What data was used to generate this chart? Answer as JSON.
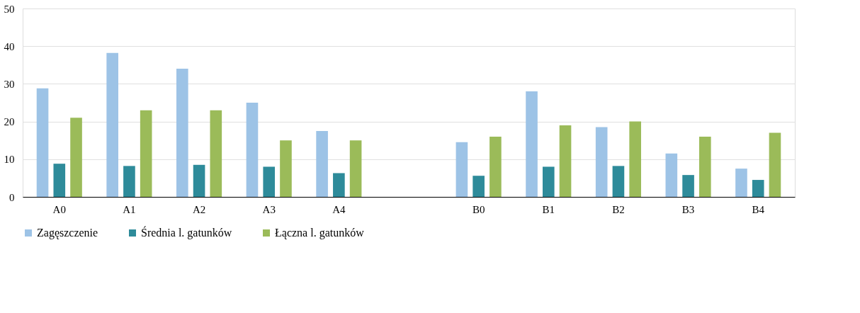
{
  "chart_data": {
    "type": "bar",
    "categories": [
      "A0",
      "A1",
      "A2",
      "A3",
      "A4",
      null,
      "B0",
      "B1",
      "B2",
      "B3",
      "B4"
    ],
    "series": [
      {
        "name": "Zagęszczenie",
        "color": "#9dc3e6",
        "values": [
          28.8,
          38.2,
          34,
          25,
          17.5,
          null,
          14.5,
          28,
          18.5,
          11.5,
          7.5
        ]
      },
      {
        "name": "Średnia l. gatunków",
        "color": "#2e8b9a",
        "values": [
          8.8,
          8.2,
          8.5,
          8,
          6.3,
          null,
          5.6,
          8,
          8.2,
          5.8,
          4.5
        ]
      },
      {
        "name": "Łączna l. gatunków",
        "color": "#9bbb59",
        "values": [
          21,
          23,
          23,
          15,
          15,
          null,
          16,
          19,
          20,
          16,
          17
        ]
      }
    ],
    "ylim": [
      0,
      50
    ],
    "yticks": [
      0,
      10,
      20,
      30,
      40,
      50
    ],
    "grid": "y",
    "legend": "bottom"
  }
}
